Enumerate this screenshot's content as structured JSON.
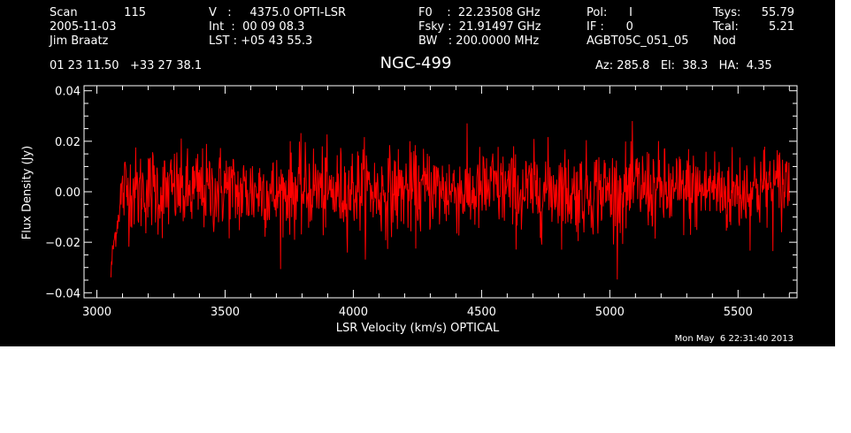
{
  "header": {
    "scan_label": "Scan",
    "scan_number": "115",
    "date": "2005-11-03",
    "observer": "Jim Braatz",
    "velocity": "V   :     4375.0 OPTI-LSR",
    "integration": "Int  :  00 09 08.3",
    "lst": "LST : +05 43 55.3",
    "f0": "F0    :  22.23508 GHz",
    "fsky": "Fsky :  21.91497 GHz",
    "bw": "BW   : 200.0000 MHz",
    "pol": "Pol:      I",
    "if": "IF :      0",
    "project": "AGBT05C_051_05",
    "tsys_label": "Tsys:",
    "tsys_value": "55.79",
    "tcal_label": "Tcal:",
    "tcal_value": "5.21",
    "mode": "Nod",
    "coordinates": "01 23 11.50   +33 27 38.1",
    "source": "NGC-499",
    "pointing": "Az: 285.8   El:  38.3   HA:  4.35"
  },
  "footer": {
    "timestamp": "Mon May  6 22:31:40 2013"
  },
  "colors": {
    "background": "#000000",
    "axes": "#ffffff",
    "trace": "#ff0000"
  },
  "chart_data": {
    "type": "line",
    "xlabel": "LSR Velocity (km/s) OPTICAL",
    "ylabel": "Flux Density (Jy)",
    "xlim": [
      2950,
      5730
    ],
    "ylim": [
      -0.042,
      0.042
    ],
    "xticks": [
      3000,
      3500,
      4000,
      4500,
      5000,
      5500
    ],
    "xticklabels": [
      "3000",
      "3500",
      "4000",
      "4500",
      "5000",
      "5500"
    ],
    "yticks": [
      -0.04,
      -0.02,
      0.0,
      0.02,
      0.04
    ],
    "yticklabels": [
      "−0.04",
      "−0.02",
      "0.00",
      "0.02",
      "0.04"
    ],
    "grid": false,
    "series": [
      {
        "color": "#ff0000",
        "x": [
          3055,
          3060,
          3065,
          3070,
          3075,
          3080,
          3085,
          3090,
          3095,
          3100,
          3110,
          3120,
          3140,
          3160,
          3180,
          3200,
          3220,
          3250,
          3280,
          3300,
          3350,
          3400,
          3450,
          3500,
          3550,
          3600,
          3650,
          3700,
          3750,
          3800,
          3850,
          3900,
          3950,
          4000,
          4050,
          4100,
          4150,
          4200,
          4250,
          4300,
          4350,
          4400,
          4450,
          4500,
          4550,
          4600,
          4650,
          4700,
          4750,
          4800,
          4850,
          4900,
          4950,
          5000,
          5050,
          5100,
          5150,
          5200,
          5250,
          5300,
          5350,
          5400,
          5450,
          5500,
          5550,
          5600,
          5650,
          5680,
          5700
        ],
        "y": [
          -0.033,
          -0.026,
          -0.021,
          -0.018,
          -0.015,
          -0.012,
          -0.009,
          -0.006,
          -0.003,
          -0.001,
          0.001,
          0.0,
          0.002,
          -0.001,
          0.001,
          0.0,
          0.002,
          -0.001,
          0.0,
          0.001,
          -0.001,
          0.001,
          0.0,
          0.002,
          -0.001,
          0.0,
          0.001,
          -0.002,
          0.001,
          0.0,
          0.002,
          -0.001,
          0.0,
          0.001,
          0.002,
          -0.001,
          0.0,
          0.001,
          -0.001,
          0.002,
          0.0,
          0.001,
          -0.001,
          0.0,
          0.002,
          0.001,
          -0.001,
          0.0,
          0.001,
          0.002,
          -0.001,
          0.0,
          0.001,
          0.0,
          -0.001,
          0.002,
          0.001,
          0.0,
          -0.001,
          0.001,
          0.0,
          0.002,
          -0.001,
          0.0,
          0.001,
          0.002,
          0.001,
          0.003,
          0.005
        ],
        "noise_rms_jy": 0.0085
      }
    ]
  }
}
